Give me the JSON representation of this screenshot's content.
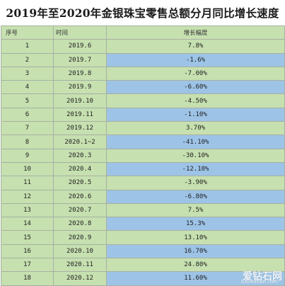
{
  "title": "2019年至2020年金银珠宝零售总额分月同比增长速度",
  "columns": [
    "序号",
    "时间",
    "增长幅度"
  ],
  "rows": [
    {
      "idx": "1",
      "time": "2019.6",
      "rate": "7.8%",
      "highlight": false
    },
    {
      "idx": "2",
      "time": "2019.7",
      "rate": "-1.6%",
      "highlight": true
    },
    {
      "idx": "3",
      "time": "2019.8",
      "rate": "-7.00%",
      "highlight": false
    },
    {
      "idx": "4",
      "time": "2019.9",
      "rate": "-6.60%",
      "highlight": true
    },
    {
      "idx": "5",
      "time": "2019.10",
      "rate": "-4.50%",
      "highlight": false
    },
    {
      "idx": "6",
      "time": "2019.11",
      "rate": "-1.10%",
      "highlight": true
    },
    {
      "idx": "7",
      "time": "2019.12",
      "rate": "3.70%",
      "highlight": false
    },
    {
      "idx": "8",
      "time": "2020.1~2",
      "rate": "-41.10%",
      "highlight": true
    },
    {
      "idx": "9",
      "time": "2020.3",
      "rate": "-30.10%",
      "highlight": false
    },
    {
      "idx": "10",
      "time": "2020.4",
      "rate": "-12.10%",
      "highlight": true
    },
    {
      "idx": "11",
      "time": "2020.5",
      "rate": "-3.90%",
      "highlight": false
    },
    {
      "idx": "12",
      "time": "2020.6",
      "rate": "-6.80%",
      "highlight": true
    },
    {
      "idx": "13",
      "time": "2020.7",
      "rate": "7.5%",
      "highlight": false
    },
    {
      "idx": "14",
      "time": "2020.8",
      "rate": "15.3%",
      "highlight": true
    },
    {
      "idx": "15",
      "time": "2020.9",
      "rate": "13.10%",
      "highlight": false
    },
    {
      "idx": "16",
      "time": "2020.10",
      "rate": "16.70%",
      "highlight": true
    },
    {
      "idx": "17",
      "time": "2020.11",
      "rate": "24.80%",
      "highlight": false
    },
    {
      "idx": "18",
      "time": "2020.12",
      "rate": "11.60%",
      "highlight": true
    }
  ],
  "watermark": {
    "main": "爱钻石网",
    "sub": "iLovezuan.com"
  },
  "colors": {
    "green_cell": "#c6e0b0",
    "blue_cell": "#9dc3e6",
    "grid": "#a8b0a2"
  }
}
